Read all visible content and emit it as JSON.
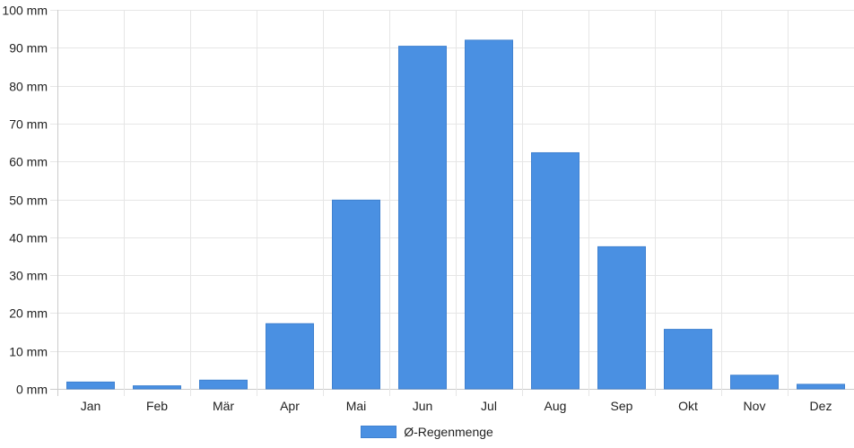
{
  "chart_data": {
    "type": "bar",
    "categories": [
      "Jan",
      "Feb",
      "Mär",
      "Apr",
      "Mai",
      "Jun",
      "Jul",
      "Aug",
      "Sep",
      "Okt",
      "Nov",
      "Dez"
    ],
    "series": [
      {
        "name": "Ø-Regenmenge",
        "values": [
          1.8,
          0.8,
          2.3,
          17.2,
          49.8,
          90.4,
          92.0,
          62.3,
          37.5,
          15.7,
          3.6,
          1.2
        ]
      }
    ],
    "yunit": "mm",
    "ylim": [
      0,
      100
    ],
    "ytick_step": 10,
    "grid": true,
    "legend_position": "bottom",
    "colors": {
      "bar_fill": "#4a90e2",
      "bar_stroke": "#3f81d0",
      "grid": "#e6e6e6",
      "axis": "#cccccc"
    }
  }
}
